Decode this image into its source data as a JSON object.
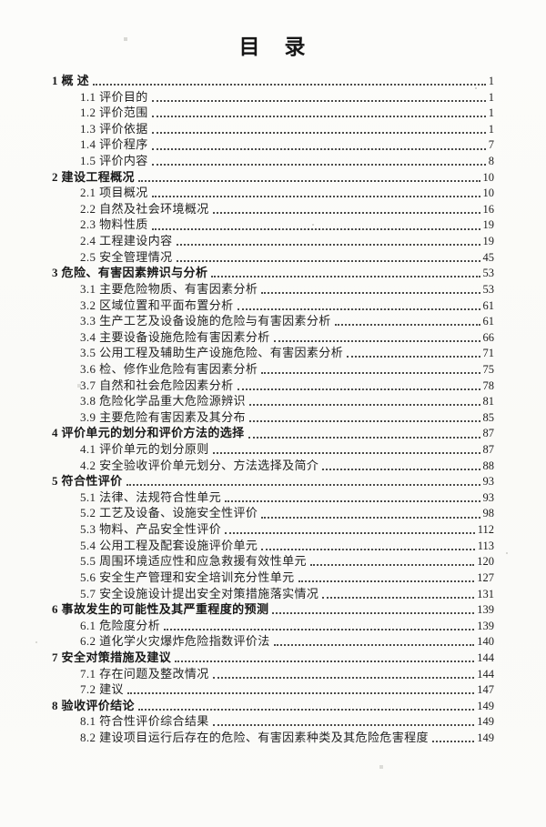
{
  "document": {
    "title": "目　录",
    "toc_entries": [
      {
        "level": 1,
        "label": "1 概 述",
        "page": "1"
      },
      {
        "level": 2,
        "label": "1.1 评价目的",
        "page": "1"
      },
      {
        "level": 2,
        "label": "1.2 评价范围",
        "page": "1"
      },
      {
        "level": 2,
        "label": "1.3 评价依据",
        "page": "1"
      },
      {
        "level": 2,
        "label": "1.4 评价程序",
        "page": "7"
      },
      {
        "level": 2,
        "label": "1.5 评价内容",
        "page": "8"
      },
      {
        "level": 1,
        "label": "2 建设工程概况",
        "page": "10"
      },
      {
        "level": 2,
        "label": "2.1 项目概况",
        "page": "10"
      },
      {
        "level": 2,
        "label": "2.2 自然及社会环境概况",
        "page": "16"
      },
      {
        "level": 2,
        "label": "2.3 物料性质",
        "page": "19"
      },
      {
        "level": 2,
        "label": "2.4 工程建设内容",
        "page": "19"
      },
      {
        "level": 2,
        "label": "2.5 安全管理情况",
        "page": "45"
      },
      {
        "level": 1,
        "label": "3 危险、有害因素辨识与分析",
        "page": "53"
      },
      {
        "level": 2,
        "label": "3.1 主要危险物质、有害因素分析",
        "page": "53"
      },
      {
        "level": 2,
        "label": "3.2 区域位置和平面布置分析",
        "page": "61"
      },
      {
        "level": 2,
        "label": "3.3 生产工艺及设备设施的危险与有害因素分析",
        "page": "61"
      },
      {
        "level": 2,
        "label": "3.4 主要设备设施危险有害因素分析",
        "page": "66"
      },
      {
        "level": 2,
        "label": "3.5 公用工程及辅助生产设施危险、有害因素分析",
        "page": "71"
      },
      {
        "level": 2,
        "label": "3.6 检、修作业危险有害因素分析",
        "page": "75"
      },
      {
        "level": 2,
        "label": "3.7 自然和社会危险因素分析",
        "page": "78"
      },
      {
        "level": 2,
        "label": "3.8 危险化学品重大危险源辨识",
        "page": "81"
      },
      {
        "level": 2,
        "label": "3.9 主要危险有害因素及其分布",
        "page": "85"
      },
      {
        "level": 1,
        "label": "4 评价单元的划分和评价方法的选择",
        "page": "87"
      },
      {
        "level": 2,
        "label": "4.1 评价单元的划分原则",
        "page": "87"
      },
      {
        "level": 2,
        "label": "4.2 安全验收评价单元划分、方法选择及简介",
        "page": "88"
      },
      {
        "level": 1,
        "label": "5 符合性评价",
        "page": "93"
      },
      {
        "level": 2,
        "label": "5.1 法律、法规符合性单元",
        "page": "93"
      },
      {
        "level": 2,
        "label": "5.2 工艺及设备、设施安全性评价",
        "page": "98"
      },
      {
        "level": 2,
        "label": "5.3 物料、产品安全性评价",
        "page": "112"
      },
      {
        "level": 2,
        "label": "5.4 公用工程及配套设施评价单元",
        "page": "113"
      },
      {
        "level": 2,
        "label": "5.5 周围环境适应性和应急救援有效性单元",
        "page": "120"
      },
      {
        "level": 2,
        "label": "5.6 安全生产管理和安全培训充分性单元",
        "page": "127"
      },
      {
        "level": 2,
        "label": "5.7 安全设施设计提出安全对策措施落实情况",
        "page": "131"
      },
      {
        "level": 1,
        "label": "6 事故发生的可能性及其严重程度的预测",
        "page": "139"
      },
      {
        "level": 2,
        "label": "6.1 危险度分析",
        "page": "139"
      },
      {
        "level": 2,
        "label": "6.2 道化学火灾爆炸危险指数评价法",
        "page": "140"
      },
      {
        "level": 1,
        "label": "7 安全对策措施及建议",
        "page": "144"
      },
      {
        "level": 2,
        "label": "7.1 存在问题及整改情况",
        "page": "144"
      },
      {
        "level": 2,
        "label": "7.2 建议",
        "page": "147"
      },
      {
        "level": 1,
        "label": "8 验收评价结论",
        "page": "149"
      },
      {
        "level": 2,
        "label": "8.1 符合性评价综合结果",
        "page": "149"
      },
      {
        "level": 2,
        "label": "8.2 建设项目运行后存在的危险、有害因素种类及其危险危害程度",
        "page": "149"
      }
    ]
  }
}
